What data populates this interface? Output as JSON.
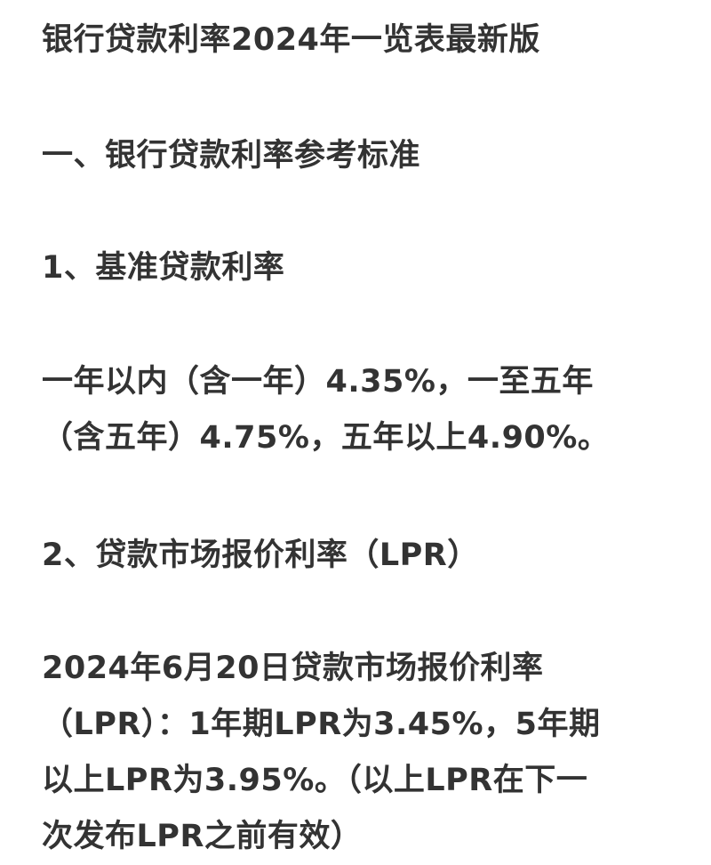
{
  "document": {
    "title": "银行贷款利率2024年一览表最新版",
    "section_1_heading": "一、银行贷款利率参考标准",
    "subsection_1_heading": "1、基准贷款利率",
    "subsection_1_body_line1": "一年以内（含一年）4.35%，一至五年",
    "subsection_1_body_line2": "（含五年）4.75%，五年以上4.90%。",
    "subsection_2_heading": "2、贷款市场报价利率（LPR）",
    "subsection_2_body_line1": "2024年6月20日贷款市场报价利率",
    "subsection_2_body_line2": "（LPR）：1年期LPR为3.45%，5年期",
    "subsection_2_body_line3": "以上LPR为3.95%。（以上LPR在下一",
    "subsection_2_body_line4": "次发布LPR之前有效）"
  }
}
